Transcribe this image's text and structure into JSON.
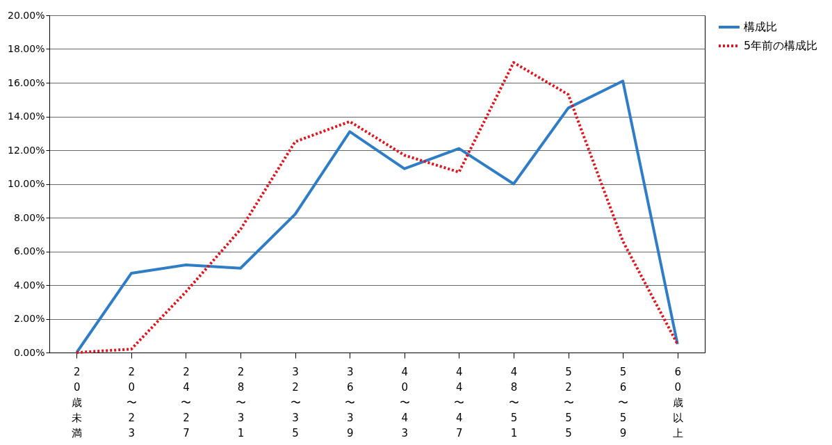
{
  "chart_data": {
    "type": "line",
    "categories": [
      "20歳未満",
      "20〜23",
      "24〜27",
      "28〜31",
      "32〜35",
      "36〜39",
      "40〜43",
      "44〜47",
      "48〜51",
      "52〜55",
      "56〜59",
      "60歳以上"
    ],
    "series": [
      {
        "name": "構成比",
        "color": "#2f7dc6",
        "line_style": "solid",
        "values": [
          0,
          4.7,
          5.2,
          5.0,
          8.2,
          13.1,
          10.9,
          12.1,
          10.0,
          14.5,
          16.1,
          0.5
        ]
      },
      {
        "name": "5年前の構成比",
        "color": "#e0141e",
        "line_style": "dotted",
        "values": [
          0,
          0.2,
          3.6,
          7.3,
          12.5,
          13.7,
          11.7,
          10.7,
          17.2,
          15.3,
          6.6,
          0.5
        ]
      }
    ],
    "ylim": [
      0,
      20
    ],
    "yticks": [
      {
        "value": 0,
        "label": "0.00%"
      },
      {
        "value": 2,
        "label": "2.00%"
      },
      {
        "value": 4,
        "label": "4.00%"
      },
      {
        "value": 6,
        "label": "6.00%"
      },
      {
        "value": 8,
        "label": "8.00%"
      },
      {
        "value": 10,
        "label": "10.00%"
      },
      {
        "value": 12,
        "label": "12.00%"
      },
      {
        "value": 14,
        "label": "14.00%"
      },
      {
        "value": 16,
        "label": "16.00%"
      },
      {
        "value": 18,
        "label": "18.00%"
      },
      {
        "value": 20,
        "label": "20.00%"
      }
    ],
    "grid": "y",
    "legend": "right",
    "marker": "none"
  }
}
